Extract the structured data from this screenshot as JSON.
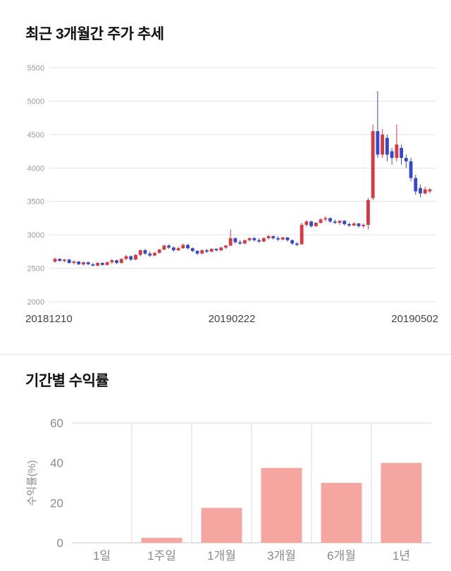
{
  "chart_data": [
    {
      "type": "candlestick",
      "title": "최근 3개월간 주가 추세",
      "ylim": [
        2000,
        5500
      ],
      "yticks": [
        2000,
        2500,
        3000,
        3500,
        4000,
        4500,
        5000,
        5500
      ],
      "x_axis_labels": [
        "20181210",
        "20190222",
        "20190502"
      ],
      "up_color": "#d8383f",
      "down_color": "#3347cf",
      "grid_color": "#e3e3e3",
      "tick_label_color": "#9a9a9a",
      "candles_ohlc": [
        [
          2600,
          2660,
          2580,
          2640
        ],
        [
          2640,
          2650,
          2600,
          2610
        ],
        [
          2610,
          2640,
          2590,
          2630
        ],
        [
          2630,
          2640,
          2570,
          2580
        ],
        [
          2580,
          2620,
          2560,
          2600
        ],
        [
          2600,
          2610,
          2550,
          2560
        ],
        [
          2560,
          2600,
          2540,
          2590
        ],
        [
          2590,
          2600,
          2550,
          2560
        ],
        [
          2560,
          2580,
          2530,
          2540
        ],
        [
          2540,
          2590,
          2530,
          2580
        ],
        [
          2580,
          2590,
          2540,
          2550
        ],
        [
          2550,
          2600,
          2540,
          2590
        ],
        [
          2590,
          2640,
          2570,
          2620
        ],
        [
          2620,
          2630,
          2560,
          2580
        ],
        [
          2580,
          2650,
          2570,
          2640
        ],
        [
          2640,
          2700,
          2620,
          2680
        ],
        [
          2680,
          2690,
          2610,
          2630
        ],
        [
          2630,
          2710,
          2620,
          2700
        ],
        [
          2700,
          2780,
          2680,
          2770
        ],
        [
          2770,
          2790,
          2700,
          2720
        ],
        [
          2720,
          2750,
          2670,
          2690
        ],
        [
          2690,
          2740,
          2680,
          2730
        ],
        [
          2730,
          2790,
          2720,
          2780
        ],
        [
          2780,
          2850,
          2770,
          2840
        ],
        [
          2840,
          2860,
          2790,
          2810
        ],
        [
          2810,
          2830,
          2750,
          2770
        ],
        [
          2770,
          2820,
          2760,
          2800
        ],
        [
          2800,
          2870,
          2790,
          2850
        ],
        [
          2850,
          2860,
          2780,
          2800
        ],
        [
          2800,
          2810,
          2740,
          2760
        ],
        [
          2760,
          2770,
          2700,
          2720
        ],
        [
          2720,
          2780,
          2710,
          2770
        ],
        [
          2770,
          2790,
          2730,
          2750
        ],
        [
          2750,
          2800,
          2740,
          2790
        ],
        [
          2790,
          2800,
          2750,
          2770
        ],
        [
          2770,
          2820,
          2760,
          2810
        ],
        [
          2810,
          2850,
          2790,
          2840
        ],
        [
          2840,
          3080,
          2830,
          2950
        ],
        [
          2950,
          2960,
          2870,
          2890
        ],
        [
          2890,
          2920,
          2850,
          2870
        ],
        [
          2870,
          2930,
          2860,
          2920
        ],
        [
          2920,
          2960,
          2900,
          2950
        ],
        [
          2950,
          2970,
          2900,
          2920
        ],
        [
          2920,
          2950,
          2880,
          2900
        ],
        [
          2900,
          2960,
          2890,
          2950
        ],
        [
          2950,
          3000,
          2930,
          2980
        ],
        [
          2980,
          2990,
          2930,
          2950
        ],
        [
          2950,
          2980,
          2910,
          2930
        ],
        [
          2930,
          2970,
          2920,
          2960
        ],
        [
          2960,
          2970,
          2900,
          2920
        ],
        [
          2920,
          2930,
          2850,
          2870
        ],
        [
          2870,
          2890,
          2830,
          2850
        ],
        [
          2860,
          3180,
          2850,
          3150
        ],
        [
          3150,
          3220,
          3120,
          3200
        ],
        [
          3200,
          3210,
          3110,
          3130
        ],
        [
          3130,
          3190,
          3120,
          3180
        ],
        [
          3180,
          3250,
          3170,
          3230
        ],
        [
          3230,
          3280,
          3200,
          3250
        ],
        [
          3250,
          3260,
          3180,
          3200
        ],
        [
          3200,
          3230,
          3160,
          3180
        ],
        [
          3180,
          3220,
          3150,
          3210
        ],
        [
          3210,
          3220,
          3140,
          3160
        ],
        [
          3160,
          3180,
          3120,
          3140
        ],
        [
          3140,
          3190,
          3130,
          3170
        ],
        [
          3170,
          3180,
          3110,
          3130
        ],
        [
          3130,
          3170,
          3100,
          3150
        ],
        [
          3150,
          3550,
          3080,
          3520
        ],
        [
          3550,
          4650,
          3520,
          4550
        ],
        [
          4550,
          5150,
          4150,
          4200
        ],
        [
          4200,
          4580,
          4150,
          4500
        ],
        [
          4450,
          4500,
          4100,
          4200
        ],
        [
          4250,
          4300,
          4050,
          4150
        ],
        [
          4150,
          4650,
          4100,
          4350
        ],
        [
          4300,
          4350,
          4050,
          4150
        ],
        [
          4150,
          4200,
          4000,
          4100
        ],
        [
          4100,
          4150,
          3800,
          3850
        ],
        [
          3850,
          3900,
          3600,
          3650
        ],
        [
          3700,
          3750,
          3560,
          3620
        ],
        [
          3620,
          3720,
          3600,
          3680
        ],
        [
          3650,
          3700,
          3620,
          3680
        ]
      ]
    },
    {
      "type": "bar",
      "title": "기간별 수익률",
      "ylabel": "수익률(%)",
      "categories": [
        "1일",
        "1주일",
        "1개월",
        "3개월",
        "6개월",
        "1년"
      ],
      "values": [
        0,
        2.5,
        17.5,
        37.5,
        30,
        40
      ],
      "ylim": [
        0,
        60
      ],
      "yticks": [
        0,
        20,
        40,
        60
      ],
      "bar_color": "#f5a6a1",
      "grid_color": "#d9d9d9",
      "axis_color": "#c6c6c6",
      "tick_label_color": "#8a8a8a",
      "legend": "none",
      "grid": "vertical-separators-and-top-line"
    }
  ]
}
